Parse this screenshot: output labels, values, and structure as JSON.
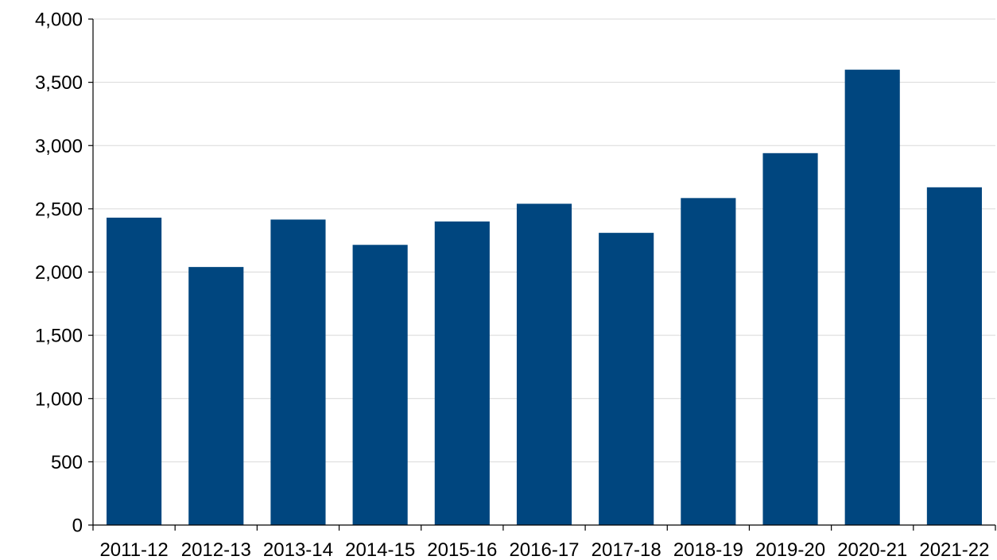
{
  "chart_data": {
    "type": "bar",
    "title": "",
    "xlabel": "",
    "ylabel": "",
    "categories": [
      "2011-12",
      "2012-13",
      "2013-14",
      "2014-15",
      "2015-16",
      "2016-17",
      "2017-18",
      "2018-19",
      "2019-20",
      "2020-21",
      "2021-22"
    ],
    "values": [
      2430,
      2040,
      2415,
      2215,
      2400,
      2540,
      2310,
      2585,
      2940,
      3600,
      2670
    ],
    "ylim": [
      0,
      4000
    ],
    "yticks": [
      0,
      500,
      1000,
      1500,
      2000,
      2500,
      3000,
      3500,
      4000
    ],
    "ytick_labels": [
      "0",
      "500",
      "1,000",
      "1,500",
      "2,000",
      "2,500",
      "3,000",
      "3,500",
      "4,000"
    ],
    "grid": true,
    "legend": "none",
    "colors": {
      "bar": "#00467f",
      "grid": "#d9d9d9",
      "axis": "#000000"
    }
  }
}
